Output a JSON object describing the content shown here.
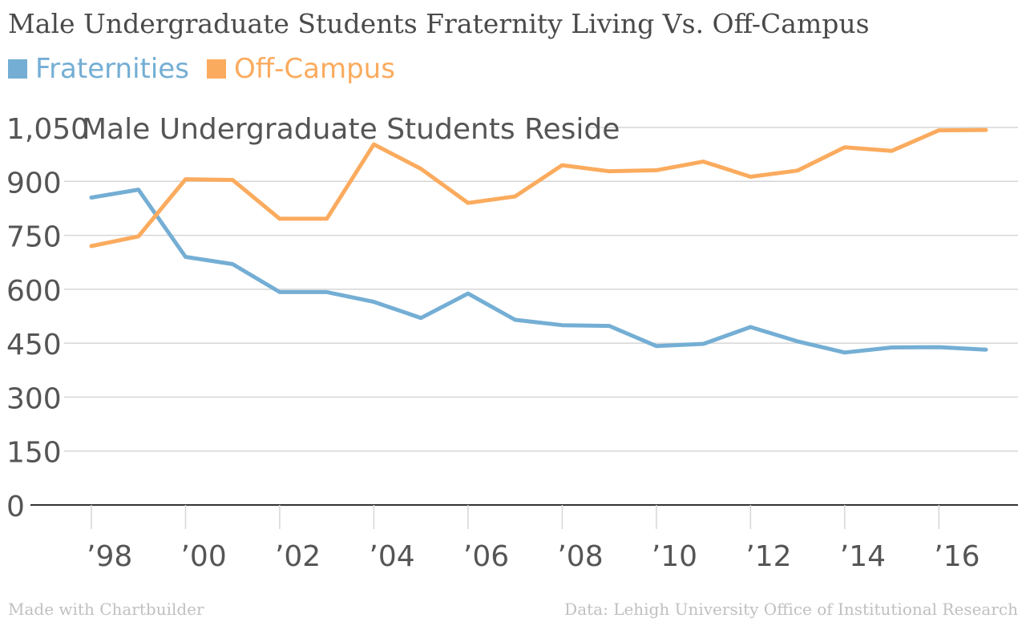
{
  "title": "Male Undergraduate Students Fraternity Living Vs. Off-Campus",
  "footer": {
    "left": "Made with Chartbuilder",
    "right": "Data: Lehigh University Office of Institutional Research"
  },
  "colors": {
    "fraternities": "#74aed4",
    "off_campus": "#fbab5e",
    "grid": "#d6d6d6",
    "axis": "#333333",
    "label": "#555555"
  },
  "chart_data": {
    "type": "line",
    "ylabel": "Male Undergraduate Students Reside",
    "ylim": [
      0,
      1050
    ],
    "yticks": [
      0,
      150,
      300,
      450,
      600,
      750,
      900
    ],
    "ytick_labels": [
      "0",
      "150",
      "300",
      "450",
      "600",
      "750",
      "900"
    ],
    "ytop_label": "1,050",
    "xlim": [
      1998,
      2017
    ],
    "xticks": [
      1998,
      2000,
      2002,
      2004,
      2006,
      2008,
      2010,
      2012,
      2014,
      2016
    ],
    "xtick_labels": [
      "’98",
      "’00",
      "’02",
      "’04",
      "’06",
      "’08",
      "’10",
      "’12",
      "’14",
      "’16"
    ],
    "x": [
      1998,
      1999,
      2000,
      2001,
      2002,
      2003,
      2004,
      2005,
      2006,
      2007,
      2008,
      2009,
      2010,
      2011,
      2012,
      2013,
      2014,
      2015,
      2016,
      2017
    ],
    "grid": true,
    "legend_position": "top-left",
    "series": [
      {
        "name": "Fraternities",
        "values": [
          855,
          877,
          690,
          670,
          592,
          592,
          565,
          520,
          588,
          515,
          500,
          498,
          442,
          448,
          495,
          455,
          424,
          438,
          439,
          432
        ]
      },
      {
        "name": "Off-Campus",
        "values": [
          720,
          747,
          906,
          904,
          796,
          796,
          1003,
          935,
          840,
          858,
          945,
          928,
          931,
          955,
          913,
          930,
          995,
          985,
          1042,
          1043
        ]
      }
    ]
  }
}
